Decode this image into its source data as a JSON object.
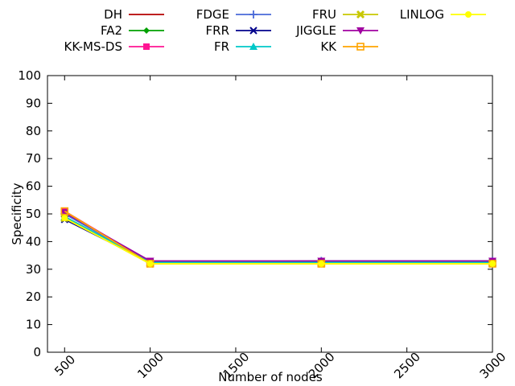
{
  "chart_data": {
    "type": "line",
    "xlabel": "Number of nodes",
    "ylabel": "Specificity",
    "xlim": [
      400,
      3000
    ],
    "ylim": [
      0,
      100
    ],
    "xticks": [
      500,
      1000,
      1500,
      2000,
      2500,
      3000
    ],
    "yticks": [
      0,
      10,
      20,
      30,
      40,
      50,
      60,
      70,
      80,
      90,
      100
    ],
    "x": [
      500,
      1000,
      2000,
      3000
    ],
    "grid": false,
    "legend_position": "top",
    "series": [
      {
        "name": "DH",
        "color": "#b50000",
        "marker": "none",
        "values": [
          50.5,
          32.5,
          32.5,
          32.5
        ]
      },
      {
        "name": "FA2",
        "color": "#00a000",
        "marker": "diamond",
        "values": [
          49.0,
          32.5,
          32.5,
          32.5
        ]
      },
      {
        "name": "KK-MS-DS",
        "color": "#ff1493",
        "marker": "square",
        "values": [
          51.0,
          32.5,
          32.5,
          32.5
        ]
      },
      {
        "name": "FDGE",
        "color": "#4a6ad8",
        "marker": "plus",
        "values": [
          50.0,
          32.5,
          33.0,
          33.0
        ]
      },
      {
        "name": "FRR",
        "color": "#00008b",
        "marker": "cross",
        "values": [
          48.0,
          32.5,
          32.5,
          32.5
        ]
      },
      {
        "name": "FR",
        "color": "#00c8c8",
        "marker": "triangle",
        "values": [
          49.0,
          32.5,
          32.5,
          32.5
        ]
      },
      {
        "name": "FRU",
        "color": "#c8c800",
        "marker": "x",
        "values": [
          48.5,
          32.0,
          32.0,
          32.0
        ]
      },
      {
        "name": "JIGGLE",
        "color": "#a000a0",
        "marker": "triangle-down",
        "values": [
          50.5,
          33.0,
          33.0,
          33.0
        ]
      },
      {
        "name": "KK",
        "color": "#ffa500",
        "marker": "square-open",
        "values": [
          51.0,
          32.0,
          32.0,
          32.0
        ]
      },
      {
        "name": "LINLOG",
        "color": "#ffff00",
        "marker": "circle",
        "values": [
          48.5,
          32.0,
          32.0,
          32.0
        ]
      }
    ]
  }
}
